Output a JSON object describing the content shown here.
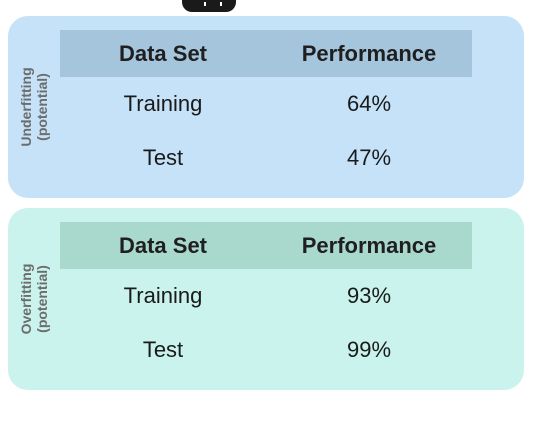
{
  "colors": {
    "underfitting_panel": "#c5e2f8",
    "underfitting_header": "#a5c5dc",
    "overfitting_panel": "#c9f3ec",
    "overfitting_header": "#a9d8cd"
  },
  "panels": [
    {
      "label_line1": "Underfitting",
      "label_line2": "(potential)",
      "header": {
        "col1": "Data Set",
        "col2": "Performance"
      },
      "rows": [
        {
          "dataset": "Training",
          "performance": "64%"
        },
        {
          "dataset": "Test",
          "performance": "47%"
        }
      ]
    },
    {
      "label_line1": "Overfitting",
      "label_line2": "(potential)",
      "header": {
        "col1": "Data Set",
        "col2": "Performance"
      },
      "rows": [
        {
          "dataset": "Training",
          "performance": "93%"
        },
        {
          "dataset": "Test",
          "performance": "99%"
        }
      ]
    }
  ]
}
